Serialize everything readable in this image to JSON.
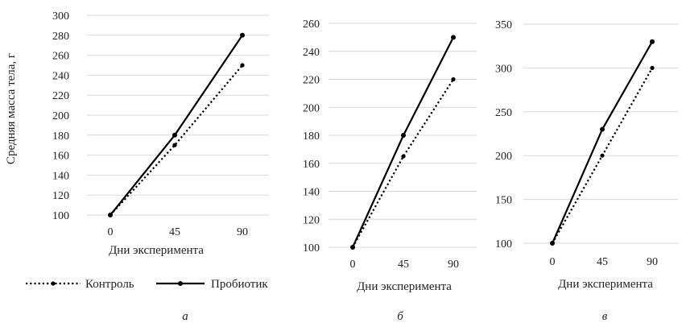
{
  "legend": [
    {
      "name": "Контроль",
      "style": "dotted"
    },
    {
      "name": "Пробиотик",
      "style": "solid"
    }
  ],
  "chart_data": [
    {
      "type": "line",
      "panel_label": "а",
      "x": [
        0,
        45,
        90
      ],
      "xlabel": "Дни эксперимента",
      "ylabel": "Средняя масса тела, г",
      "ylim": [
        100,
        300
      ],
      "yticks": [
        100,
        120,
        140,
        160,
        180,
        200,
        220,
        240,
        260,
        280,
        300
      ],
      "grid": "horizontal",
      "series": [
        {
          "name": "Контроль",
          "values": [
            100,
            170,
            250
          ]
        },
        {
          "name": "Пробиотик",
          "values": [
            100,
            180,
            280
          ]
        }
      ]
    },
    {
      "type": "line",
      "panel_label": "б",
      "x": [
        0,
        45,
        90
      ],
      "xlabel": "Дни эксперимента",
      "ylabel": "",
      "ylim": [
        100,
        260
      ],
      "yticks": [
        100,
        120,
        140,
        160,
        180,
        200,
        220,
        240,
        260
      ],
      "grid": "horizontal",
      "series": [
        {
          "name": "Контроль",
          "values": [
            100,
            165,
            220
          ]
        },
        {
          "name": "Пробиотик",
          "values": [
            100,
            180,
            250
          ]
        }
      ]
    },
    {
      "type": "line",
      "panel_label": "в",
      "x": [
        0,
        45,
        90
      ],
      "xlabel": "Дни эксперимента",
      "ylabel": "",
      "ylim": [
        100,
        350
      ],
      "yticks": [
        100,
        150,
        200,
        250,
        300,
        350
      ],
      "grid": "horizontal",
      "series": [
        {
          "name": "Контроль",
          "values": [
            100,
            200,
            300
          ]
        },
        {
          "name": "Пробиотик",
          "values": [
            100,
            230,
            330
          ]
        }
      ]
    }
  ]
}
